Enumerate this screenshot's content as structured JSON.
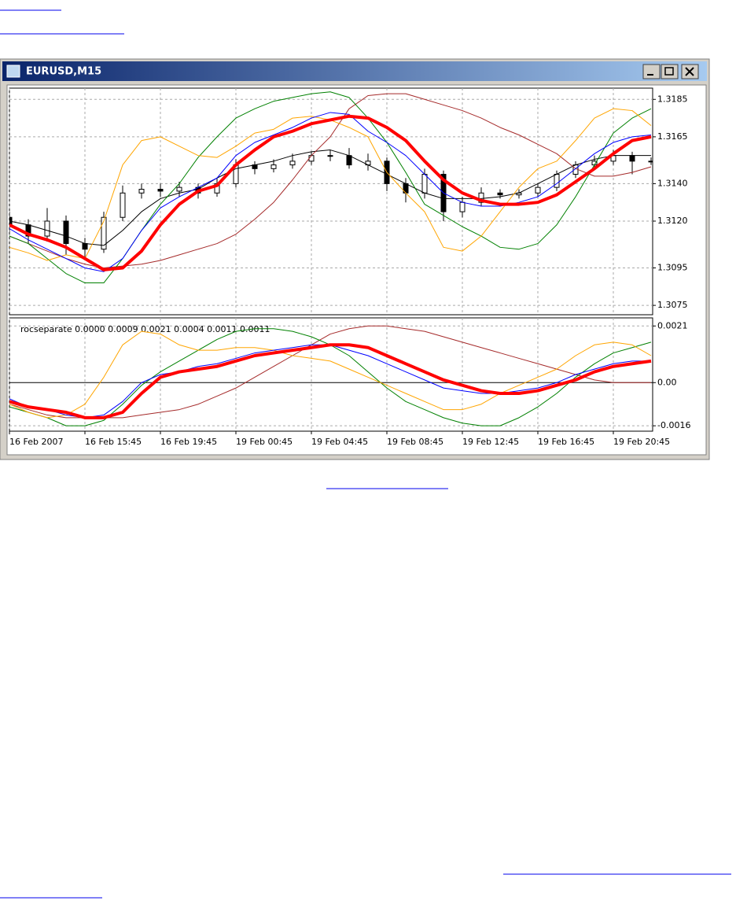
{
  "window": {
    "title": "EURUSD,M15"
  },
  "chart_data": [
    {
      "type": "candlestick",
      "x": [
        0,
        1,
        2,
        3,
        4,
        5,
        6,
        7,
        8,
        9,
        10,
        11,
        12,
        13,
        14,
        15,
        16,
        17,
        18,
        19,
        20,
        21,
        22,
        23,
        24,
        25,
        26,
        27,
        28,
        29,
        30,
        31,
        32,
        33,
        34
      ],
      "open": [
        1.3122,
        1.3118,
        1.3112,
        1.312,
        1.3108,
        1.3105,
        1.3122,
        1.3135,
        1.3137,
        1.3136,
        1.3138,
        1.3135,
        1.314,
        1.315,
        1.3148,
        1.315,
        1.3152,
        1.3155,
        1.3155,
        1.315,
        1.3152,
        1.314,
        1.3135,
        1.3145,
        1.3125,
        1.313,
        1.3135,
        1.3134,
        1.3135,
        1.3138,
        1.3145,
        1.315,
        1.3152,
        1.3155,
        1.3152
      ],
      "high": [
        1.3125,
        1.3121,
        1.3127,
        1.3123,
        1.3111,
        1.3125,
        1.3139,
        1.314,
        1.314,
        1.3141,
        1.314,
        1.3143,
        1.3153,
        1.3152,
        1.3153,
        1.3156,
        1.3157,
        1.3158,
        1.3159,
        1.3156,
        1.3154,
        1.3143,
        1.3148,
        1.3147,
        1.3133,
        1.3138,
        1.3137,
        1.3137,
        1.314,
        1.3147,
        1.3152,
        1.3155,
        1.3158,
        1.3157,
        1.3154
      ],
      "low": [
        1.3114,
        1.3108,
        1.3109,
        1.3102,
        1.31,
        1.3103,
        1.312,
        1.3132,
        1.3133,
        1.3133,
        1.3132,
        1.3133,
        1.3138,
        1.3145,
        1.3146,
        1.3148,
        1.315,
        1.3152,
        1.3148,
        1.3147,
        1.3136,
        1.313,
        1.3132,
        1.312,
        1.3122,
        1.3128,
        1.3132,
        1.3132,
        1.3133,
        1.3136,
        1.3143,
        1.3148,
        1.315,
        1.3145,
        1.315
      ],
      "close": [
        1.3118,
        1.3112,
        1.312,
        1.3108,
        1.3105,
        1.3122,
        1.3135,
        1.3137,
        1.3136,
        1.3138,
        1.3135,
        1.314,
        1.315,
        1.3148,
        1.315,
        1.3152,
        1.3155,
        1.3155,
        1.315,
        1.3152,
        1.314,
        1.3135,
        1.3145,
        1.3125,
        1.313,
        1.3135,
        1.3134,
        1.3135,
        1.3138,
        1.3145,
        1.315,
        1.3152,
        1.3155,
        1.3152,
        1.3152
      ],
      "series": [
        {
          "color": "#000000",
          "values": [
            1.312,
            1.3118,
            1.3115,
            1.3112,
            1.3108,
            1.3107,
            1.3115,
            1.3125,
            1.3132,
            1.3135,
            1.3137,
            1.3143,
            1.3148,
            1.315,
            1.3152,
            1.3155,
            1.3157,
            1.3158,
            1.3155,
            1.315,
            1.3145,
            1.314,
            1.3135,
            1.3132,
            1.3132,
            1.3132,
            1.3133,
            1.3135,
            1.314,
            1.3145,
            1.315,
            1.3153,
            1.3155,
            1.3155,
            1.3155
          ]
        },
        {
          "color": "#a52a2a",
          "values": [
            1.3112,
            1.3108,
            1.3104,
            1.31,
            1.3097,
            1.3095,
            1.3096,
            1.3097,
            1.3099,
            1.3102,
            1.3105,
            1.3108,
            1.3113,
            1.3121,
            1.313,
            1.3142,
            1.3155,
            1.3165,
            1.318,
            1.3187,
            1.3188,
            1.3188,
            1.3185,
            1.3182,
            1.3179,
            1.3175,
            1.317,
            1.3166,
            1.3161,
            1.3156,
            1.3148,
            1.3144,
            1.3144,
            1.3146,
            1.3149
          ]
        },
        {
          "color": "#008000",
          "values": [
            1.3112,
            1.3108,
            1.31,
            1.3092,
            1.3087,
            1.3087,
            1.31,
            1.3115,
            1.3129,
            1.314,
            1.3154,
            1.3165,
            1.3175,
            1.318,
            1.3184,
            1.3186,
            1.3188,
            1.3189,
            1.3186,
            1.3175,
            1.3162,
            1.3146,
            1.3129,
            1.3123,
            1.3117,
            1.3112,
            1.3106,
            1.3105,
            1.3108,
            1.3118,
            1.3133,
            1.315,
            1.3167,
            1.3175,
            1.318
          ]
        },
        {
          "color": "#ffa500",
          "values": [
            1.3106,
            1.3103,
            1.3099,
            1.3102,
            1.31,
            1.312,
            1.315,
            1.3163,
            1.3165,
            1.316,
            1.3155,
            1.3154,
            1.316,
            1.3167,
            1.3169,
            1.3175,
            1.3176,
            1.3174,
            1.317,
            1.3165,
            1.3146,
            1.3135,
            1.3125,
            1.3106,
            1.3104,
            1.3112,
            1.3125,
            1.3138,
            1.3148,
            1.3152,
            1.3163,
            1.3175,
            1.318,
            1.3179,
            1.3171
          ]
        },
        {
          "color": "#0000ff",
          "values": [
            1.3116,
            1.311,
            1.3105,
            1.31,
            1.3095,
            1.3093,
            1.31,
            1.3115,
            1.3127,
            1.3133,
            1.3138,
            1.3143,
            1.3155,
            1.3162,
            1.3166,
            1.317,
            1.3175,
            1.3178,
            1.3177,
            1.3168,
            1.3162,
            1.3155,
            1.3145,
            1.3135,
            1.313,
            1.3128,
            1.3128,
            1.313,
            1.3133,
            1.314,
            1.3148,
            1.3156,
            1.3162,
            1.3165,
            1.3166
          ]
        },
        {
          "color": "#ff0000",
          "values": [
            1.3118,
            1.3113,
            1.311,
            1.3106,
            1.31,
            1.3094,
            1.3095,
            1.3104,
            1.3118,
            1.3129,
            1.3136,
            1.3139,
            1.315,
            1.3158,
            1.3165,
            1.3168,
            1.3172,
            1.3174,
            1.3176,
            1.3175,
            1.317,
            1.3163,
            1.3152,
            1.3142,
            1.3135,
            1.3131,
            1.3129,
            1.3129,
            1.313,
            1.3134,
            1.3141,
            1.3148,
            1.3156,
            1.3163,
            1.3165
          ]
        }
      ],
      "xlim": [
        0,
        34
      ],
      "ylim": [
        1.307,
        1.3191
      ],
      "yticks": [
        1.3185,
        1.3165,
        {
          "value": 1.314,
          "label": "1.3140"
        },
        {
          "value": 1.312,
          "label": "1.3120"
        },
        1.3095,
        1.3075
      ],
      "grid": true
    },
    {
      "type": "line",
      "title": "rocseparate  0.0000 0.0009 0.0021 0.0004 0.0011 0.0011",
      "x": [
        0,
        1,
        2,
        3,
        4,
        5,
        6,
        7,
        8,
        9,
        10,
        11,
        12,
        13,
        14,
        15,
        16,
        17,
        18,
        19,
        20,
        21,
        22,
        23,
        24,
        25,
        26,
        27,
        28,
        29,
        30,
        31,
        32,
        33,
        34
      ],
      "series": [
        {
          "color": "#a52a2a",
          "values": [
            -0.0008,
            -0.001,
            -0.0012,
            -0.0013,
            -0.0013,
            -0.0013,
            -0.0013,
            -0.0012,
            -0.0011,
            -0.001,
            -0.0008,
            -0.0005,
            -0.0002,
            0.0002,
            0.0006,
            0.001,
            0.0014,
            0.0018,
            0.002,
            0.0021,
            0.0021,
            0.002,
            0.0019,
            0.0017,
            0.0015,
            0.0013,
            0.0011,
            0.0009,
            0.0007,
            0.0005,
            0.0003,
            0.0001,
            0.0,
            0.0,
            0.0
          ]
        },
        {
          "color": "#008000",
          "values": [
            -0.0009,
            -0.0011,
            -0.0013,
            -0.0016,
            -0.0016,
            -0.0014,
            -0.0008,
            -0.0001,
            0.0004,
            0.0008,
            0.0012,
            0.0016,
            0.0019,
            0.002,
            0.002,
            0.0019,
            0.0017,
            0.0014,
            0.001,
            0.0004,
            -0.0002,
            -0.0007,
            -0.001,
            -0.0013,
            -0.0015,
            -0.0016,
            -0.0016,
            -0.0013,
            -0.0009,
            -0.0004,
            0.0002,
            0.0007,
            0.0011,
            0.0013,
            0.0015
          ]
        },
        {
          "color": "#ffa500",
          "values": [
            -0.0008,
            -0.0011,
            -0.0013,
            -0.0012,
            -0.0008,
            0.0002,
            0.0014,
            0.0019,
            0.0018,
            0.0014,
            0.0012,
            0.0012,
            0.0013,
            0.0013,
            0.0012,
            0.001,
            0.0009,
            0.0008,
            0.0005,
            0.0002,
            -0.0001,
            -0.0004,
            -0.0007,
            -0.001,
            -0.001,
            -0.0008,
            -0.0004,
            -0.0001,
            0.0002,
            0.0005,
            0.001,
            0.0014,
            0.0015,
            0.0014,
            0.001
          ]
        },
        {
          "color": "#0000ff",
          "values": [
            -0.0006,
            -0.0009,
            -0.001,
            -0.0012,
            -0.0013,
            -0.0012,
            -0.0007,
            0.0,
            0.0003,
            0.0004,
            0.0006,
            0.0007,
            0.0009,
            0.0011,
            0.0012,
            0.0013,
            0.0014,
            0.0014,
            0.0012,
            0.001,
            0.0007,
            0.0004,
            0.0001,
            -0.0002,
            -0.0003,
            -0.0004,
            -0.0004,
            -0.0003,
            -0.0002,
            0.0,
            0.0003,
            0.0005,
            0.0007,
            0.0008,
            0.0008
          ]
        },
        {
          "color": "#ff0000",
          "values": [
            -0.0007,
            -0.0009,
            -0.001,
            -0.0011,
            -0.0013,
            -0.0013,
            -0.0011,
            -0.0004,
            0.0002,
            0.0004,
            0.0005,
            0.0006,
            0.0008,
            0.001,
            0.0011,
            0.0012,
            0.0013,
            0.0014,
            0.0014,
            0.0013,
            0.001,
            0.0007,
            0.0004,
            0.0001,
            -0.0001,
            -0.0003,
            -0.0004,
            -0.0004,
            -0.0003,
            -0.0001,
            0.0001,
            0.0004,
            0.0006,
            0.0007,
            0.0008
          ]
        }
      ],
      "xlim": [
        0,
        34
      ],
      "ylim": [
        -0.0018,
        0.0024
      ],
      "yticks": [
        0.0021,
        {
          "value": 0,
          "label": "0.00"
        },
        -0.0016
      ],
      "xticks": [
        {
          "value": 0,
          "label": "16 Feb 2007"
        },
        {
          "value": 4,
          "label": "16 Feb 15:45"
        },
        {
          "value": 8,
          "label": "16 Feb 19:45"
        },
        {
          "value": 12,
          "label": "19 Feb 00:45"
        },
        {
          "value": 16,
          "label": "19 Feb 04:45"
        },
        {
          "value": 20,
          "label": "19 Feb 08:45"
        },
        {
          "value": 24,
          "label": "19 Feb 12:45"
        },
        {
          "value": 28,
          "label": "19 Feb 16:45"
        },
        {
          "value": 32,
          "label": "19 Feb 20:45"
        }
      ],
      "grid": true
    }
  ]
}
